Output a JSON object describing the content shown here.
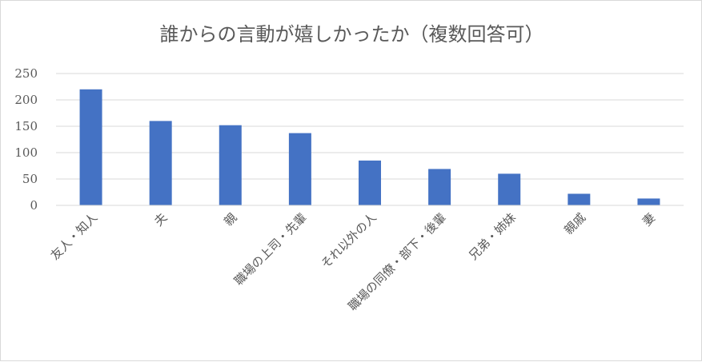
{
  "chart_data": {
    "type": "bar",
    "title": "誰からの言動が嬉しかったか（複数回答可）",
    "categories": [
      "友人・知人",
      "夫",
      "親",
      "職場の上司・先輩",
      "それ以外の人",
      "職場の同僚・部下・後輩",
      "兄弟・姉妹",
      "親戚",
      "妻"
    ],
    "values": [
      220,
      160,
      152,
      137,
      85,
      69,
      60,
      22,
      13
    ],
    "ylim": [
      0,
      250
    ],
    "yticks": [
      0,
      50,
      100,
      150,
      200,
      250
    ],
    "grid": true,
    "legend": "none",
    "bar_color": "#4472c4",
    "grid_color": "#d9d9d9"
  }
}
